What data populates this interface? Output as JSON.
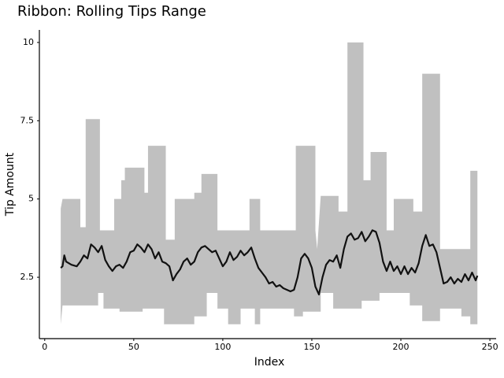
{
  "chart_data": {
    "type": "ribbon",
    "title": "Ribbon: Rolling Tips Range",
    "xlabel": "Index",
    "ylabel": "Tip Amount",
    "xlim": [
      -3,
      253.5
    ],
    "ylim": [
      0.54,
      10.4
    ],
    "xticks": [
      0,
      50,
      100,
      150,
      200,
      250
    ],
    "yticks": [
      2.5,
      5,
      7.5,
      10
    ],
    "band": {
      "color": "#c0c0c0",
      "upper": {
        "x": [
          9,
          10,
          20,
          20,
          23,
          23,
          31,
          31,
          39,
          39,
          43,
          43,
          45,
          45,
          56,
          56,
          58,
          58,
          68,
          68,
          73,
          73,
          84,
          84,
          88,
          88,
          97,
          97,
          115,
          115,
          121,
          121,
          141,
          141,
          152,
          152,
          153,
          155,
          165,
          165,
          170,
          170,
          179,
          179,
          183,
          183,
          192,
          192,
          196,
          196,
          207,
          207,
          212,
          212,
          222,
          222,
          239,
          239,
          243
        ],
        "values": [
          4.7,
          5.0,
          5.0,
          4.1,
          4.1,
          7.55,
          7.55,
          4.0,
          4.0,
          5.0,
          5.0,
          5.6,
          5.6,
          6.0,
          6.0,
          5.2,
          5.2,
          6.7,
          6.7,
          3.7,
          3.7,
          5.0,
          5.0,
          5.2,
          5.2,
          5.8,
          5.8,
          4.0,
          4.0,
          5.0,
          5.0,
          4.0,
          4.0,
          6.7,
          6.7,
          4.0,
          3.4,
          5.1,
          5.1,
          4.6,
          4.6,
          10.0,
          10.0,
          5.6,
          5.6,
          6.5,
          6.5,
          4.0,
          4.0,
          5.0,
          5.0,
          4.6,
          4.6,
          9.0,
          9.0,
          3.4,
          3.4,
          5.9,
          5.9
        ]
      },
      "lower": {
        "x": [
          9,
          10,
          30,
          30,
          33,
          33,
          42,
          42,
          55,
          55,
          67,
          67,
          84,
          84,
          91,
          91,
          97,
          97,
          103,
          103,
          110,
          110,
          118,
          118,
          121,
          121,
          140,
          140,
          145,
          145,
          155,
          155,
          162,
          162,
          178,
          178,
          188,
          188,
          205,
          205,
          212,
          212,
          222,
          222,
          234,
          234,
          239,
          239,
          243
        ],
        "values": [
          1.0,
          1.6,
          1.6,
          2.0,
          2.0,
          1.5,
          1.5,
          1.4,
          1.4,
          1.5,
          1.5,
          1.0,
          1.0,
          1.25,
          1.25,
          2.0,
          2.0,
          1.5,
          1.5,
          1.0,
          1.0,
          1.5,
          1.5,
          1.0,
          1.0,
          1.5,
          1.5,
          1.25,
          1.25,
          1.4,
          1.4,
          2.0,
          2.0,
          1.5,
          1.5,
          1.75,
          1.75,
          2.0,
          2.0,
          1.6,
          1.6,
          1.1,
          1.1,
          1.5,
          1.5,
          1.25,
          1.25,
          1.0,
          1.0
        ]
      }
    },
    "line": {
      "color": "#111111",
      "x": [
        9,
        10,
        11,
        12,
        15,
        18,
        20,
        22,
        24,
        26,
        28,
        30,
        32,
        34,
        36,
        38,
        40,
        42,
        44,
        46,
        48,
        50,
        52,
        54,
        56,
        58,
        60,
        62,
        64,
        66,
        68,
        70,
        72,
        74,
        76,
        78,
        80,
        82,
        84,
        86,
        88,
        90,
        92,
        94,
        96,
        98,
        100,
        102,
        104,
        106,
        108,
        110,
        112,
        114,
        116,
        118,
        120,
        122,
        124,
        126,
        128,
        130,
        132,
        134,
        136,
        138,
        140,
        142,
        144,
        146,
        148,
        150,
        152,
        154,
        156,
        158,
        160,
        162,
        164,
        166,
        168,
        170,
        172,
        174,
        176,
        178,
        180,
        182,
        184,
        186,
        188,
        190,
        192,
        194,
        196,
        198,
        200,
        202,
        204,
        206,
        208,
        210,
        212,
        214,
        216,
        218,
        220,
        222,
        224,
        226,
        228,
        230,
        232,
        234,
        236,
        238,
        240,
        242,
        243
      ],
      "values": [
        2.8,
        2.85,
        3.2,
        3.0,
        2.9,
        2.85,
        3.0,
        3.2,
        3.1,
        3.55,
        3.45,
        3.3,
        3.5,
        3.05,
        2.85,
        2.7,
        2.85,
        2.9,
        2.8,
        3.0,
        3.3,
        3.35,
        3.55,
        3.45,
        3.3,
        3.55,
        3.4,
        3.1,
        3.3,
        3.0,
        2.95,
        2.85,
        2.4,
        2.6,
        2.75,
        3.0,
        3.1,
        2.9,
        3.0,
        3.3,
        3.45,
        3.5,
        3.4,
        3.3,
        3.35,
        3.1,
        2.85,
        3.0,
        3.3,
        3.05,
        3.15,
        3.35,
        3.2,
        3.3,
        3.45,
        3.1,
        2.8,
        2.65,
        2.5,
        2.3,
        2.35,
        2.2,
        2.25,
        2.15,
        2.1,
        2.05,
        2.1,
        2.5,
        3.1,
        3.25,
        3.1,
        2.8,
        2.2,
        1.95,
        2.5,
        2.9,
        3.05,
        3.0,
        3.2,
        2.8,
        3.4,
        3.8,
        3.9,
        3.7,
        3.75,
        3.95,
        3.65,
        3.8,
        4.0,
        3.95,
        3.6,
        3.0,
        2.7,
        3.0,
        2.7,
        2.85,
        2.6,
        2.85,
        2.6,
        2.8,
        2.65,
        2.95,
        3.5,
        3.85,
        3.5,
        3.55,
        3.3,
        2.8,
        2.3,
        2.35,
        2.5,
        2.3,
        2.45,
        2.35,
        2.6,
        2.4,
        2.65,
        2.4,
        2.55
      ]
    }
  }
}
